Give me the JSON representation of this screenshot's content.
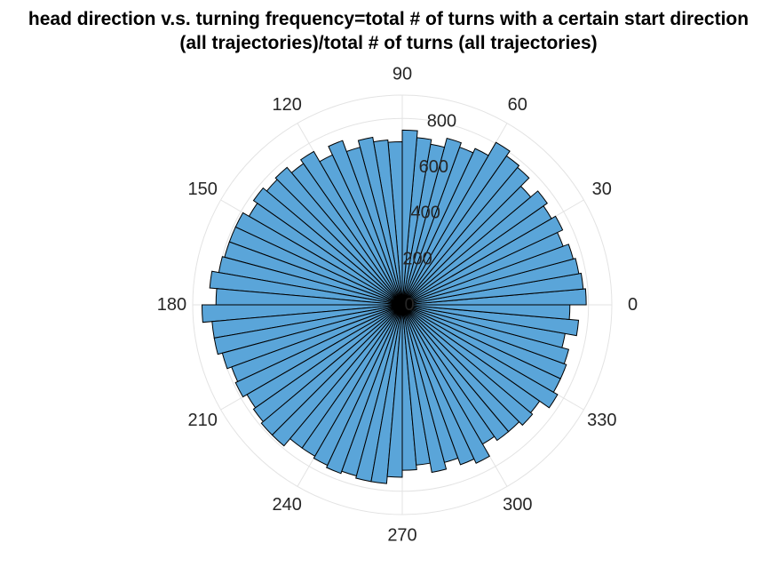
{
  "chart_data": {
    "type": "polar-histogram",
    "title": "head direction v.s. turning frequency=total # of turns with a certain start direction",
    "subtitle": "(all trajectories)/total # of turns (all trajectories)",
    "bin_count": 72,
    "bin_width_deg": 5,
    "angle_ticks": [
      "0",
      "30",
      "60",
      "90",
      "120",
      "150",
      "180",
      "210",
      "240",
      "270",
      "300",
      "330"
    ],
    "radial_ticks": [
      "0",
      "200",
      "400",
      "600",
      "800"
    ],
    "rlim": [
      0,
      900
    ],
    "bar_color": "#5aa5d9",
    "edge_color": "#000000",
    "grid": true,
    "bin_start_deg": [
      0,
      5,
      10,
      15,
      20,
      25,
      30,
      35,
      40,
      45,
      50,
      55,
      60,
      65,
      70,
      75,
      80,
      85,
      90,
      95,
      100,
      105,
      110,
      115,
      120,
      125,
      130,
      135,
      140,
      145,
      150,
      155,
      160,
      165,
      170,
      175,
      180,
      185,
      190,
      195,
      200,
      205,
      210,
      215,
      220,
      225,
      230,
      235,
      240,
      245,
      250,
      255,
      260,
      265,
      270,
      275,
      280,
      285,
      290,
      295,
      300,
      305,
      310,
      315,
      320,
      325,
      330,
      335,
      340,
      345,
      350,
      355
    ],
    "values": [
      790,
      780,
      770,
      760,
      735,
      760,
      740,
      760,
      720,
      770,
      780,
      805,
      740,
      720,
      740,
      700,
      720,
      750,
      700,
      710,
      730,
      700,
      750,
      710,
      760,
      740,
      770,
      760,
      780,
      760,
      790,
      790,
      790,
      800,
      830,
      800,
      860,
      820,
      820,
      800,
      780,
      790,
      770,
      780,
      790,
      790,
      750,
      750,
      760,
      770,
      760,
      770,
      770,
      740,
      710,
      690,
      730,
      700,
      730,
      750,
      690,
      710,
      710,
      730,
      720,
      770,
      750,
      750,
      740,
      710,
      760,
      720
    ]
  }
}
